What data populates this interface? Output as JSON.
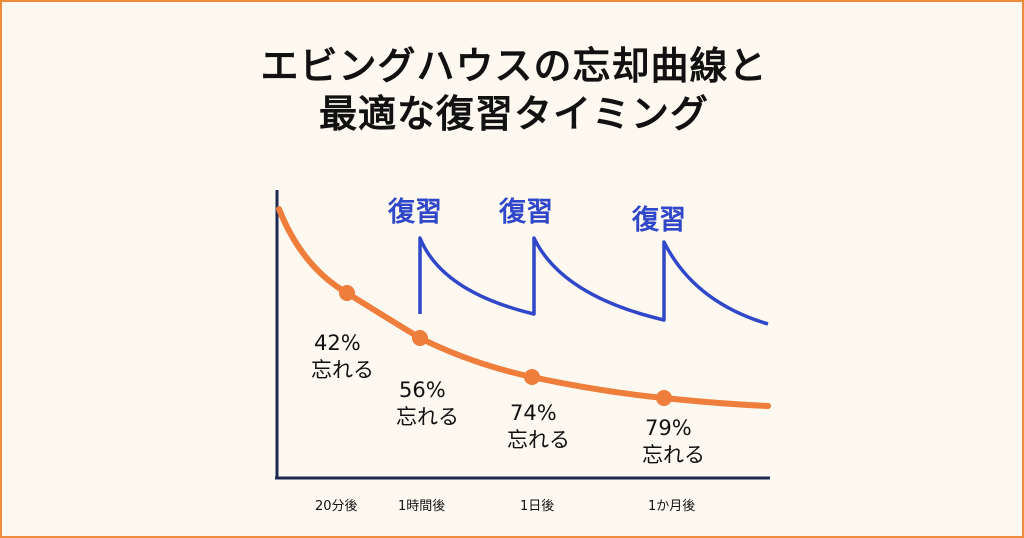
{
  "title": {
    "line1": "エビングハウスの忘却曲線と",
    "line2": "最適な復習タイミング"
  },
  "colors": {
    "border": "#ee8b3c",
    "background": "#fdf9f1",
    "forgetting_curve": "#ef7d3b",
    "review_curve": "#2f47c8",
    "axis": "#1d2a52"
  },
  "chart_data": {
    "type": "line",
    "x_categories": [
      "20分後",
      "1時間後",
      "1日後",
      "1か月後"
    ],
    "forgetting_points": [
      {
        "x": "20分後",
        "percent": "42%",
        "note": "忘れる"
      },
      {
        "x": "1時間後",
        "percent": "56%",
        "note": "忘れる"
      },
      {
        "x": "1日後",
        "percent": "74%",
        "note": "忘れる"
      },
      {
        "x": "1か月後",
        "percent": "79%",
        "note": "忘れる"
      }
    ],
    "review_marks": [
      {
        "at": "1時間後",
        "label": "復習"
      },
      {
        "at": "1日後",
        "label": "復習"
      },
      {
        "at": "1か月後",
        "label": "復習"
      }
    ],
    "grid": false,
    "legend": "none"
  }
}
